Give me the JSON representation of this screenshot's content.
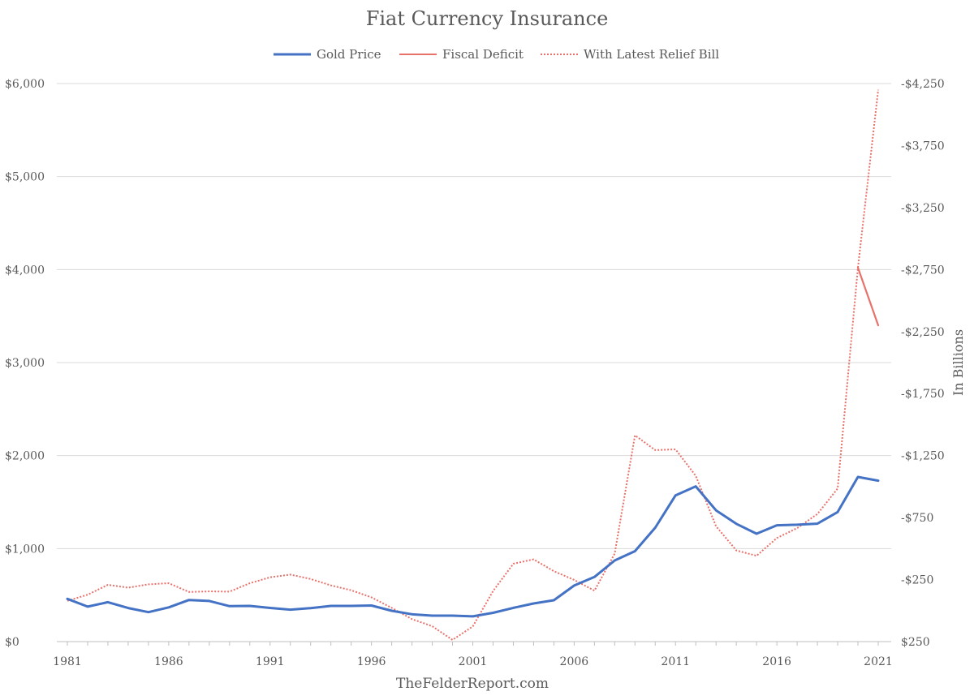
{
  "chart_data": {
    "type": "line",
    "title": "Fiat Currency Insurance",
    "source": "TheFelderReport.com",
    "x_ticks": [
      "1981",
      "1986",
      "1991",
      "1996",
      "2001",
      "2006",
      "2011",
      "2016",
      "2021"
    ],
    "xlim": [
      1981,
      2021
    ],
    "left_axis": {
      "label": "",
      "ylim": [
        0,
        6000
      ],
      "ticks": [
        0,
        1000,
        2000,
        3000,
        4000,
        5000,
        6000
      ],
      "tick_labels": [
        "$0",
        "$1,000",
        "$2,000",
        "$3,000",
        "$4,000",
        "$5,000",
        "$6,000"
      ]
    },
    "right_axis": {
      "label": "In Billions",
      "ylim": [
        250,
        -4250
      ],
      "ticks": [
        250,
        -250,
        -750,
        -1250,
        -1750,
        -2250,
        -2750,
        -3250,
        -3750,
        -4250
      ],
      "tick_labels": [
        "$250",
        "-$250",
        "-$750",
        "-$1,250",
        "-$1,750",
        "-$2,250",
        "-$2,750",
        "-$3,250",
        "-$3,750",
        "-$4,250"
      ]
    },
    "legend": {
      "placement": "top-center"
    },
    "colors": {
      "gold": "#4472c4",
      "deficit": "#e8726b",
      "relief": "#e8726b"
    },
    "series": [
      {
        "name": "Gold Price",
        "axis": "left",
        "style": "solid",
        "x": [
          1981,
          1982,
          1983,
          1984,
          1985,
          1986,
          1987,
          1988,
          1989,
          1990,
          1991,
          1992,
          1993,
          1994,
          1995,
          1996,
          1997,
          1998,
          1999,
          2000,
          2001,
          2002,
          2003,
          2004,
          2005,
          2006,
          2007,
          2008,
          2009,
          2010,
          2011,
          2012,
          2013,
          2014,
          2015,
          2016,
          2017,
          2018,
          2019,
          2020,
          2021
        ],
        "values": [
          460,
          376,
          424,
          361,
          317,
          368,
          447,
          437,
          381,
          384,
          362,
          344,
          360,
          384,
          384,
          388,
          331,
          294,
          279,
          279,
          271,
          310,
          363,
          410,
          445,
          603,
          695,
          872,
          972,
          1225,
          1572,
          1669,
          1411,
          1266,
          1160,
          1251,
          1257,
          1268,
          1393,
          1770,
          1730
        ]
      },
      {
        "name": "Fiscal Deficit",
        "axis": "right",
        "style": "solid",
        "x": [
          2020,
          2021
        ],
        "values": [
          -2765,
          -2300
        ]
      },
      {
        "name": "With Latest Relief Bill",
        "axis": "right",
        "style": "dotted",
        "x": [
          1981,
          1982,
          1983,
          1984,
          1985,
          1986,
          1987,
          1988,
          1989,
          1990,
          1991,
          1992,
          1993,
          1994,
          1995,
          1996,
          1997,
          1998,
          1999,
          2000,
          2001,
          2002,
          2003,
          2004,
          2005,
          2006,
          2007,
          2008,
          2009,
          2010,
          2011,
          2012,
          2013,
          2014,
          2015,
          2016,
          2017,
          2018,
          2019,
          2020,
          2021
        ],
        "values": [
          -79,
          -128,
          -208,
          -185,
          -212,
          -221,
          -150,
          -155,
          -153,
          -221,
          -269,
          -290,
          -255,
          -203,
          -164,
          -107,
          -22,
          69,
          126,
          236,
          128,
          -158,
          -378,
          -413,
          -318,
          -248,
          -161,
          -459,
          -1413,
          -1294,
          -1300,
          -1087,
          -680,
          -485,
          -442,
          -585,
          -665,
          -779,
          -984,
          -2765,
          -4200
        ]
      }
    ]
  }
}
